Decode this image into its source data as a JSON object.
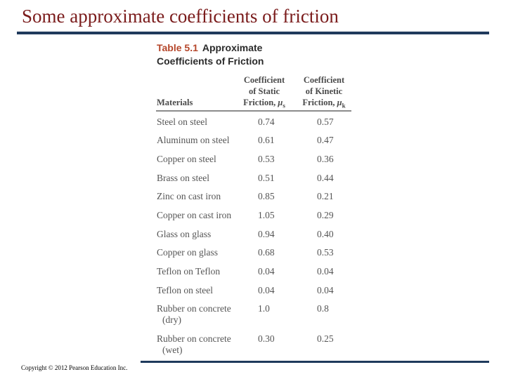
{
  "slide": {
    "title": "Some approximate coefficients of friction",
    "copyright": "Copyright © 2012 Pearson Education Inc."
  },
  "table": {
    "number": "Table 5.1",
    "caption_line1": "Approximate",
    "caption_line2": "Coefficients of Friction",
    "headers": {
      "materials": "Materials",
      "static_l1": "Coefficient",
      "static_l2": "of Static",
      "static_l3": "Friction,",
      "static_sym": "μ",
      "static_sub": "s",
      "kinetic_l1": "Coefficient",
      "kinetic_l2": "of Kinetic",
      "kinetic_l3": "Friction,",
      "kinetic_sym": "μ",
      "kinetic_sub": "k"
    },
    "rows": [
      {
        "material": "Steel on steel",
        "condition": "",
        "static": "0.74",
        "kinetic": "0.57"
      },
      {
        "material": "Aluminum on steel",
        "condition": "",
        "static": "0.61",
        "kinetic": "0.47"
      },
      {
        "material": "Copper on steel",
        "condition": "",
        "static": "0.53",
        "kinetic": "0.36"
      },
      {
        "material": "Brass on steel",
        "condition": "",
        "static": "0.51",
        "kinetic": "0.44"
      },
      {
        "material": "Zinc on cast iron",
        "condition": "",
        "static": "0.85",
        "kinetic": "0.21"
      },
      {
        "material": "Copper on cast iron",
        "condition": "",
        "static": "1.05",
        "kinetic": "0.29"
      },
      {
        "material": "Glass on glass",
        "condition": "",
        "static": "0.94",
        "kinetic": "0.40"
      },
      {
        "material": "Copper on glass",
        "condition": "",
        "static": "0.68",
        "kinetic": "0.53"
      },
      {
        "material": "Teflon on Teflon",
        "condition": "",
        "static": "0.04",
        "kinetic": "0.04"
      },
      {
        "material": "Teflon on steel",
        "condition": "",
        "static": "0.04",
        "kinetic": "0.04"
      },
      {
        "material": "Rubber on concrete",
        "condition": "(dry)",
        "static": "1.0",
        "kinetic": "0.8"
      },
      {
        "material": "Rubber on concrete",
        "condition": "(wet)",
        "static": "0.30",
        "kinetic": "0.25"
      }
    ]
  },
  "colors": {
    "title": "#7a1b1b",
    "rule": "#1f3a5c",
    "table_number": "#b5462a"
  }
}
